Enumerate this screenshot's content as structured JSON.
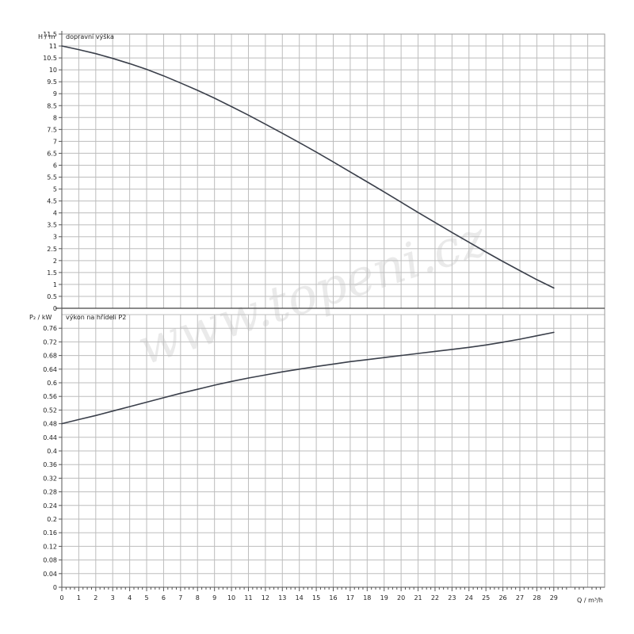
{
  "chart_data": [
    {
      "type": "line",
      "title": "dopravní výška",
      "ylabel": "H / m",
      "xlabel": "Q / m³/h",
      "xlim": [
        0,
        32
      ],
      "ylim": [
        0,
        11.5
      ],
      "grid": true,
      "x_ticks": [
        0,
        1,
        2,
        3,
        4,
        5,
        6,
        7,
        8,
        9,
        10,
        11,
        12,
        13,
        14,
        15,
        16,
        17,
        18,
        19,
        20,
        21,
        22,
        23,
        24,
        25,
        26,
        27,
        28,
        29
      ],
      "y_ticks": [
        "0",
        "0.5",
        "1",
        "1.5",
        "2",
        "2.5",
        "3",
        "3.5",
        "4",
        "4.5",
        "5",
        "5.5",
        "6",
        "6.5",
        "7",
        "7.5",
        "8",
        "8.5",
        "9",
        "9.5",
        "10",
        "10.5",
        "11",
        "11.5"
      ],
      "series": [
        {
          "x": [
            0,
            1,
            2,
            3,
            4,
            5,
            6,
            7,
            8,
            9,
            10,
            11,
            12,
            13,
            14,
            15,
            16,
            17,
            18,
            19,
            20,
            21,
            22,
            23,
            24,
            25,
            26,
            27,
            28,
            29
          ],
          "y": [
            11.0,
            10.85,
            10.68,
            10.48,
            10.26,
            10.02,
            9.75,
            9.45,
            9.14,
            8.81,
            8.46,
            8.1,
            7.72,
            7.34,
            6.95,
            6.55,
            6.14,
            5.72,
            5.3,
            4.88,
            4.45,
            4.02,
            3.6,
            3.18,
            2.77,
            2.36,
            1.96,
            1.58,
            1.2,
            0.85
          ]
        }
      ]
    },
    {
      "type": "line",
      "title": "výkon na hřídeli P2",
      "ylabel": "P₂ / kW",
      "xlabel": "Q / m³/h",
      "xlim": [
        0,
        32
      ],
      "ylim": [
        0,
        0.8
      ],
      "grid": true,
      "x_ticks": [
        0,
        1,
        2,
        3,
        4,
        5,
        6,
        7,
        8,
        9,
        10,
        11,
        12,
        13,
        14,
        15,
        16,
        17,
        18,
        19,
        20,
        21,
        22,
        23,
        24,
        25,
        26,
        27,
        28,
        29
      ],
      "y_ticks": [
        "0",
        "0.04",
        "0.08",
        "0.12",
        "0.16",
        "0.2",
        "0.24",
        "0.28",
        "0.32",
        "0.36",
        "0.4",
        "0.44",
        "0.48",
        "0.52",
        "0.56",
        "0.6",
        "0.64",
        "0.68",
        "0.72",
        "0.76"
      ],
      "series": [
        {
          "x": [
            0,
            1,
            2,
            3,
            4,
            5,
            6,
            7,
            8,
            9,
            10,
            11,
            12,
            13,
            14,
            15,
            16,
            17,
            18,
            19,
            20,
            21,
            22,
            23,
            24,
            25,
            26,
            27,
            28,
            29
          ],
          "y": [
            0.48,
            0.492,
            0.504,
            0.517,
            0.53,
            0.543,
            0.556,
            0.569,
            0.581,
            0.593,
            0.604,
            0.614,
            0.623,
            0.632,
            0.64,
            0.648,
            0.655,
            0.662,
            0.668,
            0.674,
            0.68,
            0.686,
            0.692,
            0.698,
            0.704,
            0.711,
            0.719,
            0.728,
            0.738,
            0.748
          ]
        }
      ]
    }
  ],
  "watermark": "www.topeni.cz"
}
